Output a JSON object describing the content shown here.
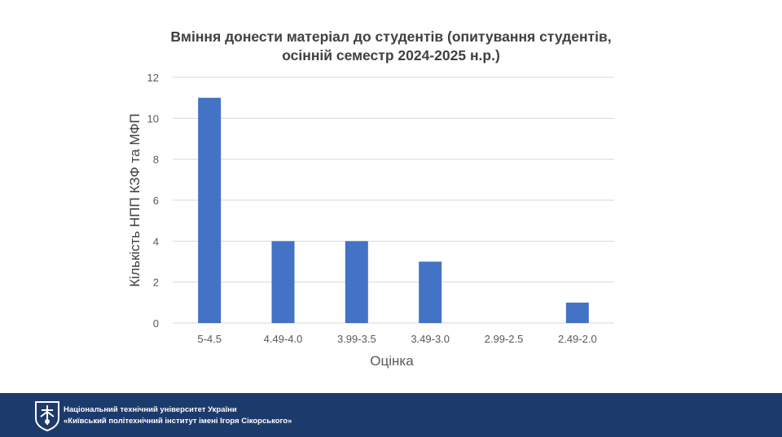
{
  "chart_data": {
    "type": "bar",
    "title_lines": [
      "Вміння донести матеріал до студентів (опитування студентів,",
      "осінній семестр 2024-2025 н.р.)"
    ],
    "xlabel": "Оцінка",
    "ylabel": "Кількість НПП КЗФ та МФП",
    "categories": [
      "5-4.5",
      "4.49-4.0",
      "3.99-3.5",
      "3.49-3.0",
      "2.99-2.5",
      "2.49-2.0"
    ],
    "values": [
      11,
      4,
      4,
      3,
      0,
      1
    ],
    "ylim": [
      0,
      12
    ],
    "yticks": [
      0,
      2,
      4,
      6,
      8,
      10,
      12
    ],
    "grid": true,
    "legend": "none",
    "bar_color": "#4472c4"
  },
  "footer": {
    "line1": "Національний технічний університет України",
    "line2": "«Київський політехнічний інститут імені Ігоря Сікорського»",
    "background": "#1d3a6c",
    "logo_icon": "kpi-shield-logo-icon"
  }
}
